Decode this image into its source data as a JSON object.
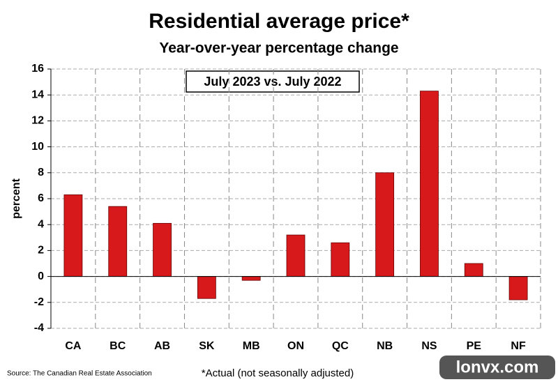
{
  "chart_data": {
    "type": "bar",
    "title": "Residential average price*",
    "subtitle": "Year-over-year percentage change",
    "annotation": "July 2023 vs. July 2022",
    "y_label": "percent",
    "source": "Source: The Canadian Real Estate Association",
    "footnote": "*Actual (not seasonally adjusted)",
    "watermark": "lonvx.com",
    "categories": [
      "CA",
      "BC",
      "AB",
      "SK",
      "MB",
      "ON",
      "QC",
      "NB",
      "NS",
      "PE",
      "NF"
    ],
    "values": [
      6.3,
      5.4,
      4.1,
      -1.7,
      -0.3,
      3.2,
      2.6,
      8.0,
      14.3,
      1.0,
      -1.8
    ],
    "color": "#d7191c",
    "ylim": [
      -4,
      16
    ],
    "yticks": [
      -4,
      -2,
      0,
      2,
      4,
      6,
      8,
      10,
      12,
      14,
      16
    ],
    "grid": true
  }
}
